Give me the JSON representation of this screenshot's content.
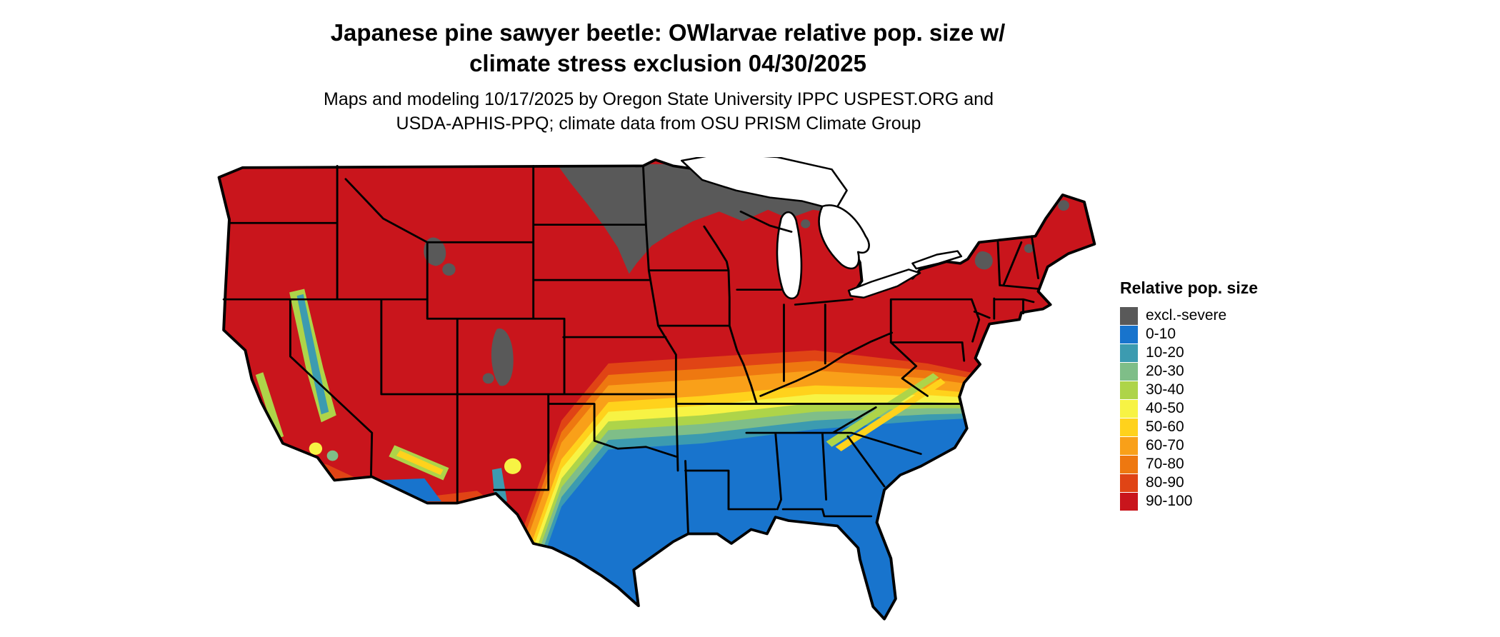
{
  "title": {
    "line1": "Japanese pine sawyer beetle: OWlarvae relative pop. size w/",
    "line2": "climate stress exclusion 04/30/2025"
  },
  "subtitle": {
    "line1": "Maps and modeling 10/17/2025 by Oregon State University IPPC USPEST.ORG and",
    "line2": "USDA-APHIS-PPQ; climate data from OSU PRISM Climate Group"
  },
  "legend": {
    "title": "Relative pop. size",
    "items": [
      {
        "label": "excl.-severe",
        "color": "#595959"
      },
      {
        "label": "0-10",
        "color": "#1874CD"
      },
      {
        "label": "10-20",
        "color": "#3C9BB0"
      },
      {
        "label": "20-30",
        "color": "#7FBE88"
      },
      {
        "label": "30-40",
        "color": "#AED449"
      },
      {
        "label": "40-50",
        "color": "#F7F344"
      },
      {
        "label": "50-60",
        "color": "#FFD21C"
      },
      {
        "label": "60-70",
        "color": "#F9A019"
      },
      {
        "label": "70-80",
        "color": "#EE7810"
      },
      {
        "label": "80-90",
        "color": "#E04415"
      },
      {
        "label": "90-100",
        "color": "#C9151C"
      }
    ]
  }
}
